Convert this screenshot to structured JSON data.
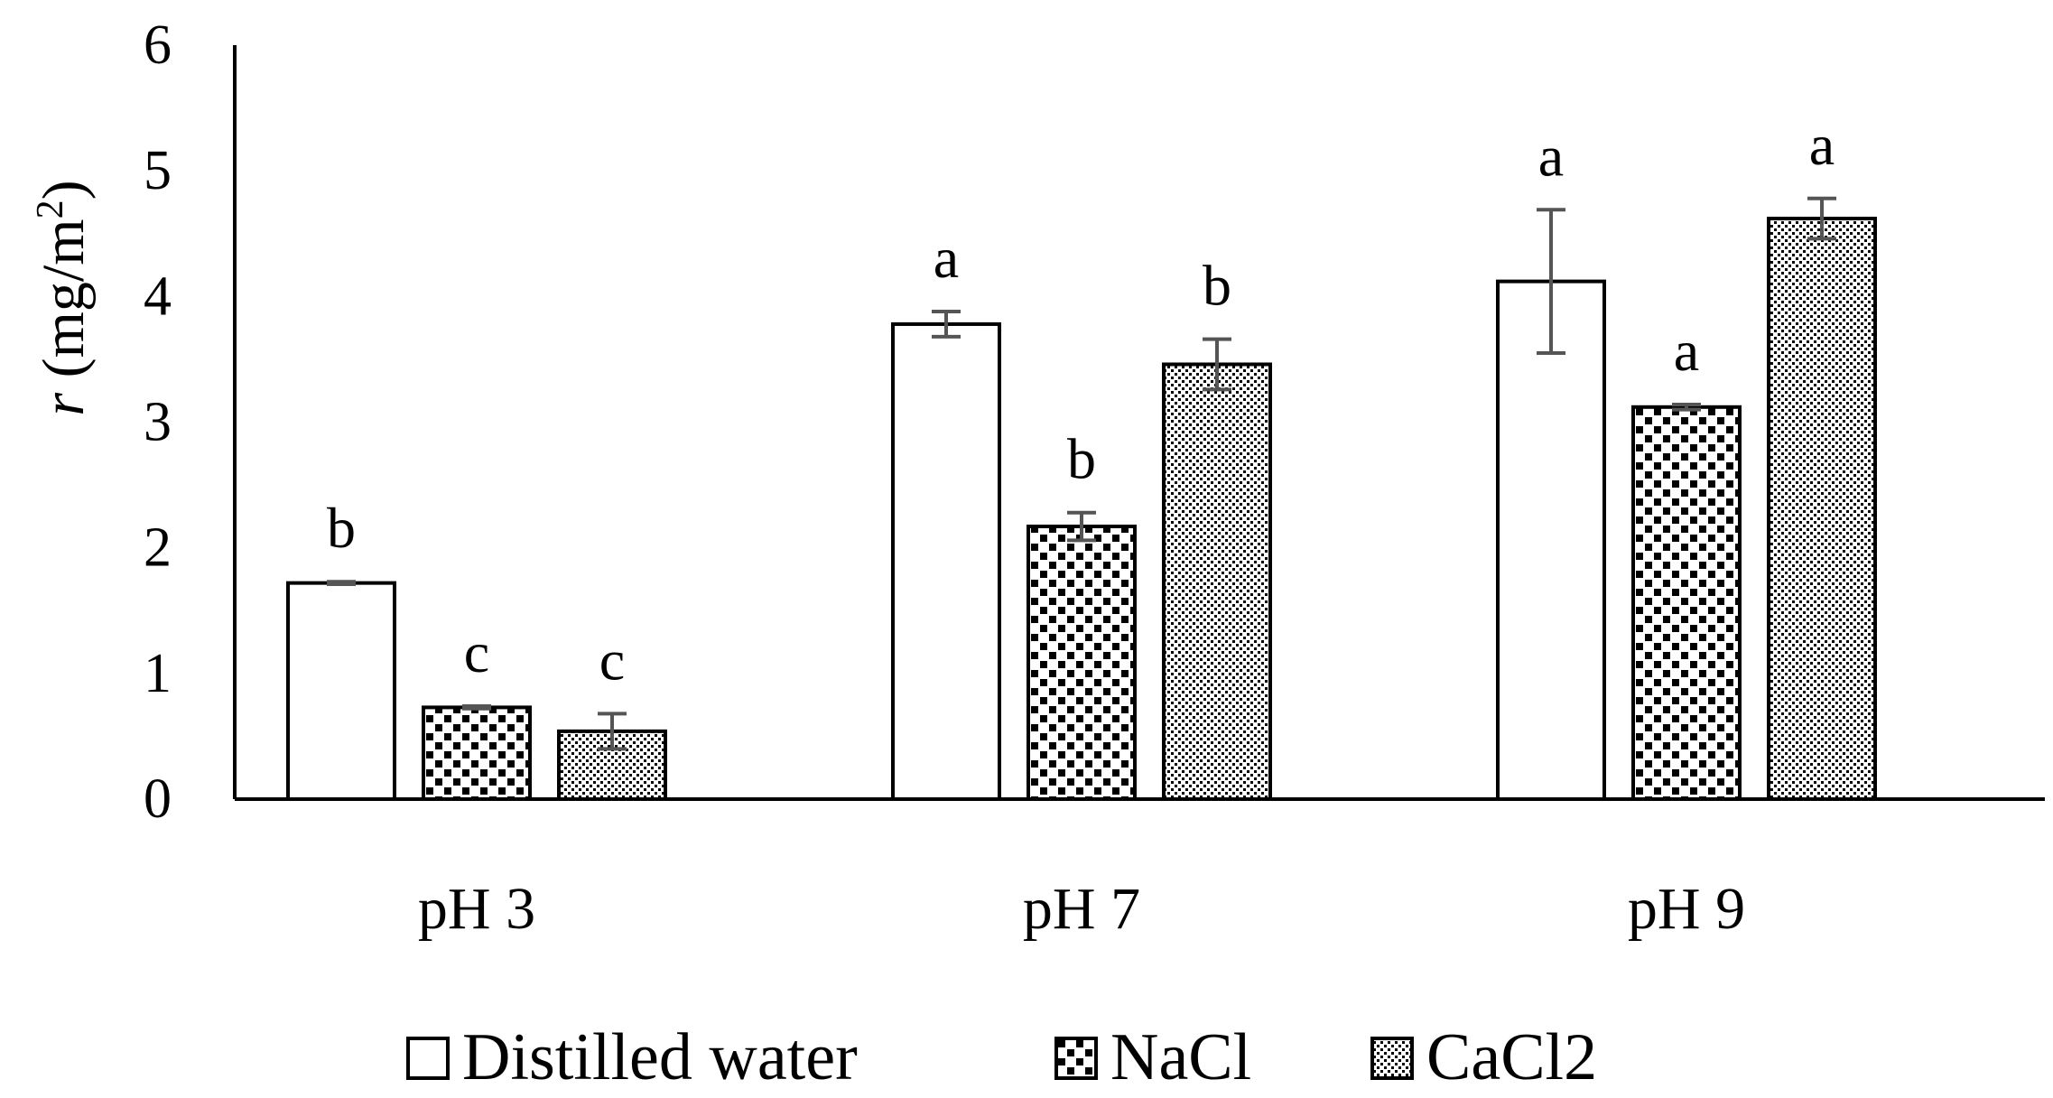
{
  "chart_data": {
    "type": "bar",
    "title": "",
    "xlabel": "",
    "ylabel": {
      "symbol": "r",
      "text": " (mg/m",
      "superscript": "2",
      "close": ")"
    },
    "ylim": [
      0,
      6
    ],
    "yticks": [
      "0",
      "1",
      "2",
      "3",
      "4",
      "5",
      "6"
    ],
    "categories": [
      "pH 3",
      "pH 7",
      "pH 9"
    ],
    "series": [
      {
        "name": "Distilled water",
        "pattern": "plain",
        "values": [
          1.72,
          3.78,
          4.12
        ],
        "errors": [
          0.01,
          0.1,
          0.57
        ],
        "letters": [
          "b",
          "a",
          "a"
        ]
      },
      {
        "name": "NaCl",
        "pattern": "squares",
        "values": [
          0.73,
          2.17,
          3.12
        ],
        "errors": [
          0.01,
          0.11,
          0.02
        ],
        "letters": [
          "c",
          "b",
          "a"
        ]
      },
      {
        "name": "CaCl2",
        "pattern": "dots",
        "values": [
          0.54,
          3.46,
          4.62
        ],
        "errors": [
          0.14,
          0.2,
          0.16
        ],
        "letters": [
          "c",
          "b",
          "a"
        ]
      }
    ],
    "legend_position": "bottom",
    "grid": false
  },
  "colors": {
    "axis": "#000000",
    "bar_fill": "#ffffff",
    "bar_stroke": "#000000",
    "error_bar": "#555555",
    "pattern": "#000000"
  }
}
